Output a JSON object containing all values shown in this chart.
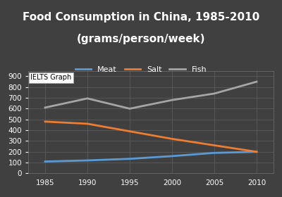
{
  "title_line1": "Food Consumption in China, 1985-2010",
  "title_line2": "(grams/person/week)",
  "years": [
    1985,
    1990,
    1995,
    2000,
    2005,
    2010
  ],
  "meat": [
    110,
    120,
    135,
    160,
    190,
    200
  ],
  "salt": [
    480,
    460,
    390,
    320,
    260,
    200
  ],
  "fish": [
    610,
    695,
    600,
    680,
    740,
    850
  ],
  "meat_color": "#5b9bd5",
  "salt_color": "#ed7d31",
  "fish_color": "#a5a5a5",
  "bg_color": "#404040",
  "plot_bg_color": "#404040",
  "text_color": "#ffffff",
  "grid_color": "#606060",
  "ylim": [
    0,
    950
  ],
  "yticks": [
    0,
    100,
    200,
    300,
    400,
    500,
    600,
    700,
    800,
    900
  ],
  "title_fontsize": 11,
  "legend_label_meat": "Meat",
  "legend_label_salt": "Salt",
  "legend_label_fish": "Fish",
  "watermark_text": "IELTS Graph",
  "line_width": 2.0
}
